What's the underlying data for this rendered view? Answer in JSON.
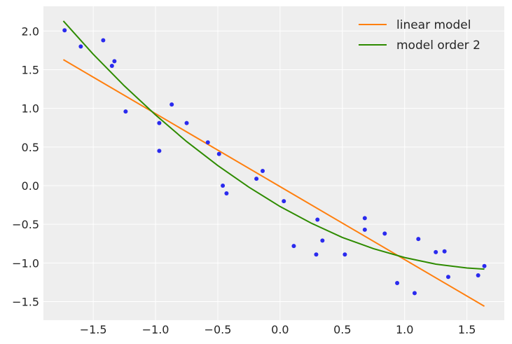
{
  "chart_data": {
    "type": "scatter",
    "xlim": [
      -1.9,
      1.8
    ],
    "ylim": [
      -1.74,
      2.32
    ],
    "grid": true,
    "legend_placement": "top-right",
    "x_ticks": [
      "−1.5",
      "−1.0",
      "−0.5",
      "0.0",
      "0.5",
      "1.0",
      "1.5"
    ],
    "x_tick_values": [
      -1.5,
      -1.0,
      -0.5,
      0.0,
      0.5,
      1.0,
      1.5
    ],
    "y_ticks": [
      "−1.5",
      "−1.0",
      "−0.5",
      "0.0",
      "0.5",
      "1.0",
      "1.5",
      "2.0"
    ],
    "y_tick_values": [
      -1.5,
      -1.0,
      -0.5,
      0.0,
      0.5,
      1.0,
      1.5,
      2.0
    ],
    "points": {
      "color": "#2a2aee",
      "x": [
        -1.73,
        -1.6,
        -1.42,
        -1.35,
        -1.33,
        -1.24,
        -0.97,
        -0.97,
        -0.87,
        -0.75,
        -0.58,
        -0.49,
        -0.46,
        -0.43,
        -0.19,
        -0.14,
        0.03,
        0.11,
        0.29,
        0.3,
        0.34,
        0.52,
        0.68,
        0.68,
        0.84,
        0.94,
        1.08,
        1.11,
        1.25,
        1.32,
        1.35,
        1.59,
        1.64
      ],
      "y": [
        2.01,
        1.8,
        1.88,
        1.55,
        1.61,
        0.96,
        0.81,
        0.45,
        1.05,
        0.81,
        0.56,
        0.41,
        0.0,
        -0.1,
        0.09,
        0.19,
        -0.2,
        -0.78,
        -0.89,
        -0.44,
        -0.71,
        -0.89,
        -0.42,
        -0.57,
        -0.62,
        -1.26,
        -1.39,
        -0.69,
        -0.86,
        -0.85,
        -1.18,
        -1.16,
        -1.04
      ]
    },
    "series": [
      {
        "name": "linear model",
        "color": "#ff7f0e",
        "x": [
          -1.74,
          1.64
        ],
        "y": [
          1.63,
          -1.56
        ]
      },
      {
        "name": "model order 2",
        "color": "#2e8b00",
        "x": [
          -1.74,
          -1.5,
          -1.25,
          -1.0,
          -0.75,
          -0.5,
          -0.25,
          0,
          0.25,
          0.5,
          0.75,
          1.0,
          1.25,
          1.5,
          1.64
        ],
        "y": [
          2.13,
          1.7,
          1.29,
          0.915,
          0.57,
          0.26,
          -0.02,
          -0.27,
          -0.485,
          -0.67,
          -0.815,
          -0.93,
          -1.015,
          -1.065,
          -1.08
        ]
      }
    ]
  }
}
